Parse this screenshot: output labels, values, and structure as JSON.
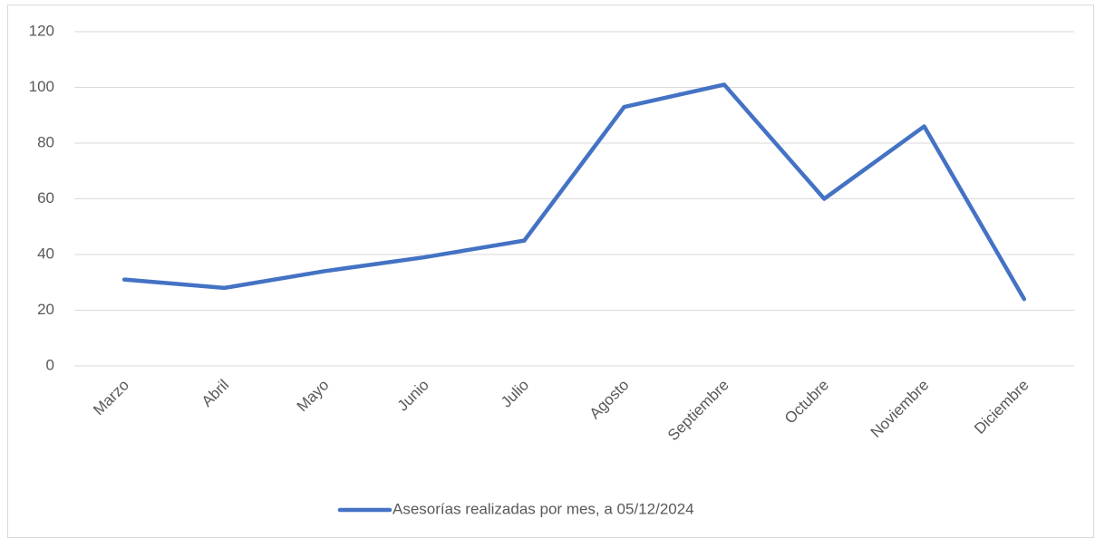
{
  "chart_data": {
    "type": "line",
    "categories": [
      "Marzo",
      "Abril",
      "Mayo",
      "Junio",
      "Julio",
      "Agosto",
      "Septiembre",
      "Octubre",
      "Noviembre",
      "Diciembre"
    ],
    "series": [
      {
        "name": "Asesorías realizadas por mes, a 05/12/2024",
        "color": "#4472c4",
        "values": [
          31,
          28,
          34,
          39,
          45,
          93,
          101,
          60,
          86,
          24
        ]
      }
    ],
    "ylim": [
      0,
      120
    ],
    "yticks": [
      0,
      20,
      40,
      60,
      80,
      100,
      120
    ],
    "grid": true,
    "legend": "bottom"
  }
}
